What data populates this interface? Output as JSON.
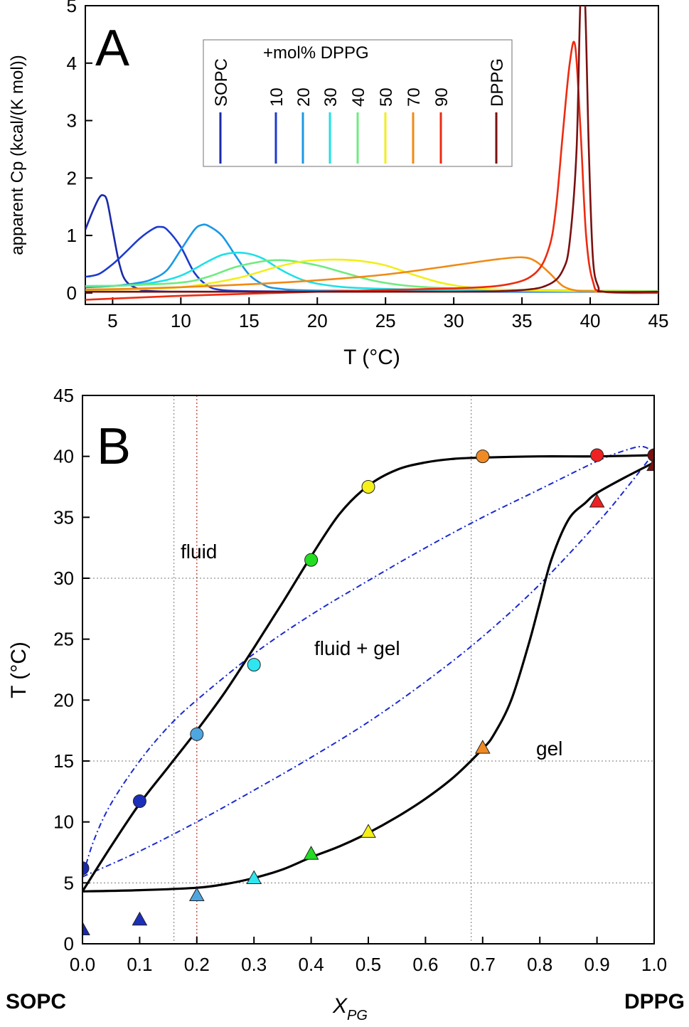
{
  "panel_a": {
    "letter": "A",
    "legend_header": "+mol% DPPG",
    "chart_data": {
      "type": "line",
      "xlabel": "T (°C)",
      "ylabel": "apparent Cp (kcal/(K mol))",
      "xlim": [
        3,
        45
      ],
      "ylim": [
        -0.2,
        5
      ],
      "xticks": [
        5,
        10,
        15,
        20,
        25,
        30,
        35,
        40,
        45
      ],
      "yticks": [
        0,
        1,
        2,
        3,
        4,
        5
      ],
      "grid": false,
      "legend_position": "top",
      "series": [
        {
          "name": "SOPC",
          "color": "#1a2aa8",
          "x": [
            3,
            3.5,
            4,
            4.3,
            4.6,
            5,
            5.5,
            6,
            7,
            8,
            10,
            15,
            20,
            30,
            45
          ],
          "y": [
            1.1,
            1.4,
            1.65,
            1.7,
            1.6,
            1.1,
            0.5,
            0.2,
            0.06,
            0.03,
            0.02,
            0.02,
            0.02,
            0.02,
            0.02
          ]
        },
        {
          "name": "10",
          "color": "#1c3bcf",
          "x": [
            3,
            4,
            5,
            6,
            7,
            8,
            8.5,
            9,
            10,
            11,
            12,
            13,
            15,
            20,
            30,
            45
          ],
          "y": [
            0.28,
            0.33,
            0.5,
            0.72,
            0.95,
            1.12,
            1.15,
            1.1,
            0.8,
            0.35,
            0.12,
            0.05,
            0.03,
            0.02,
            0.02,
            0.02
          ]
        },
        {
          "name": "20",
          "color": "#1a98e6",
          "x": [
            3,
            5,
            7,
            8,
            9,
            10,
            11,
            11.5,
            12,
            13,
            14,
            15,
            16,
            17,
            20,
            30,
            45
          ],
          "y": [
            0.1,
            0.12,
            0.18,
            0.25,
            0.4,
            0.75,
            1.1,
            1.18,
            1.17,
            1.0,
            0.65,
            0.32,
            0.15,
            0.08,
            0.04,
            0.03,
            0.02
          ]
        },
        {
          "name": "30",
          "color": "#1ee0e6",
          "x": [
            3,
            6,
            8,
            10,
            12,
            13,
            14,
            15,
            16,
            17,
            18,
            19,
            20,
            22,
            25,
            30,
            45
          ],
          "y": [
            0.12,
            0.13,
            0.18,
            0.3,
            0.55,
            0.66,
            0.7,
            0.68,
            0.6,
            0.45,
            0.32,
            0.22,
            0.16,
            0.1,
            0.07,
            0.05,
            0.03
          ]
        },
        {
          "name": "40",
          "color": "#6eec7e",
          "x": [
            3,
            6,
            10,
            12,
            14,
            16,
            17,
            18,
            20,
            22,
            24,
            26,
            28,
            30,
            35,
            45
          ],
          "y": [
            0.12,
            0.13,
            0.18,
            0.28,
            0.45,
            0.55,
            0.57,
            0.56,
            0.48,
            0.35,
            0.22,
            0.14,
            0.1,
            0.08,
            0.05,
            0.03
          ]
        },
        {
          "name": "50",
          "color": "#f2ee1a",
          "x": [
            3,
            6,
            10,
            14,
            17,
            19,
            21,
            23,
            25,
            27,
            29,
            31,
            33,
            36,
            40,
            45
          ],
          "y": [
            0.05,
            0.06,
            0.1,
            0.25,
            0.45,
            0.55,
            0.58,
            0.56,
            0.48,
            0.32,
            0.18,
            0.1,
            0.06,
            0.04,
            0.03,
            0.02
          ]
        },
        {
          "name": "70",
          "color": "#f08a14",
          "x": [
            3,
            6,
            10,
            15,
            20,
            25,
            30,
            33,
            35,
            36,
            37,
            38,
            39,
            40,
            41,
            45
          ],
          "y": [
            0.06,
            0.07,
            0.1,
            0.15,
            0.22,
            0.32,
            0.48,
            0.58,
            0.62,
            0.55,
            0.35,
            0.12,
            0.04,
            0.03,
            0.02,
            0.02
          ]
        },
        {
          "name": "90",
          "color": "#ee2a10",
          "x": [
            3,
            10,
            20,
            30,
            34,
            36,
            37,
            37.5,
            38,
            38.5,
            38.9,
            39.3,
            39.7,
            40.2,
            41,
            45
          ],
          "y": [
            -0.12,
            -0.05,
            0.02,
            0.08,
            0.15,
            0.35,
            0.8,
            1.5,
            2.8,
            4.0,
            4.3,
            2.8,
            1.0,
            0.2,
            0.02,
            0.0
          ]
        },
        {
          "name": "DPPG",
          "color": "#7a1010",
          "x": [
            3,
            20,
            30,
            35,
            37,
            38,
            38.5,
            39,
            39.3,
            39.6,
            39.9,
            40.2,
            40.6,
            41,
            45
          ],
          "y": [
            0.02,
            0.02,
            0.02,
            0.05,
            0.15,
            0.4,
            0.9,
            2.5,
            5.2,
            5.2,
            2.5,
            0.6,
            0.1,
            0.02,
            0.02
          ]
        }
      ]
    }
  },
  "panel_b": {
    "letter": "B",
    "region_labels": {
      "fluid": "fluid",
      "coexist": "fluid + gel",
      "gel": "gel"
    },
    "end_labels": {
      "left": "SOPC",
      "right": "DPPG"
    },
    "chart_data": {
      "type": "scatter",
      "xlabel": "X",
      "xlabel_sub": "PG",
      "ylabel": "T (°C)",
      "xlim": [
        0,
        1.0
      ],
      "ylim": [
        0,
        45
      ],
      "xticks": [
        "0.0",
        "0.1",
        "0.2",
        "0.3",
        "0.4",
        "0.5",
        "0.6",
        "0.7",
        "0.8",
        "0.9",
        "1.0"
      ],
      "yticks": [
        0,
        5,
        10,
        15,
        20,
        25,
        30,
        35,
        40,
        45
      ],
      "grid": "dotted guide lines at y = 5, 15, 30 and x = 0.16, 0.2, 0.68",
      "guide_y": [
        5,
        15,
        30
      ],
      "guide_x": [
        0.16,
        0.68
      ],
      "guide_x_red": [
        0.2
      ],
      "liquidus_points": [
        {
          "x": 0.0,
          "y": 6.2,
          "color": "#1a2aa8"
        },
        {
          "x": 0.1,
          "y": 11.7,
          "color": "#1c2fb8"
        },
        {
          "x": 0.2,
          "y": 17.2,
          "color": "#4ea6e0"
        },
        {
          "x": 0.3,
          "y": 22.9,
          "color": "#2fe6f0"
        },
        {
          "x": 0.4,
          "y": 31.5,
          "color": "#22dd22"
        },
        {
          "x": 0.5,
          "y": 37.5,
          "color": "#f5f01a"
        },
        {
          "x": 0.7,
          "y": 40.0,
          "color": "#f08a24"
        },
        {
          "x": 0.9,
          "y": 40.1,
          "color": "#ee2222"
        },
        {
          "x": 1.0,
          "y": 40.1,
          "color": "#7a1010"
        }
      ],
      "solidus_points": [
        {
          "x": 0.0,
          "y": 1.2,
          "color": "#1a2aa8"
        },
        {
          "x": 0.1,
          "y": 2.0,
          "color": "#1c2fb8"
        },
        {
          "x": 0.2,
          "y": 4.0,
          "color": "#4ea6e0"
        },
        {
          "x": 0.3,
          "y": 5.4,
          "color": "#2fe6f0"
        },
        {
          "x": 0.4,
          "y": 7.4,
          "color": "#22dd22"
        },
        {
          "x": 0.5,
          "y": 9.2,
          "color": "#f5f01a"
        },
        {
          "x": 0.7,
          "y": 16.1,
          "color": "#f08a24"
        },
        {
          "x": 0.9,
          "y": 36.3,
          "color": "#ee2222"
        },
        {
          "x": 1.0,
          "y": 39.3,
          "color": "#7a1010"
        }
      ],
      "liquidus_curve": {
        "x": [
          0,
          0.05,
          0.1,
          0.15,
          0.2,
          0.25,
          0.3,
          0.35,
          0.4,
          0.45,
          0.5,
          0.55,
          0.6,
          0.65,
          0.7,
          0.8,
          0.9,
          1.0
        ],
        "y": [
          4.3,
          8.0,
          11.5,
          14.5,
          17.5,
          20.7,
          24.3,
          28.0,
          31.8,
          35.3,
          37.6,
          38.9,
          39.5,
          39.8,
          39.9,
          40.0,
          40.0,
          40.1
        ]
      },
      "solidus_curve": {
        "x": [
          0,
          0.1,
          0.2,
          0.25,
          0.3,
          0.35,
          0.4,
          0.45,
          0.5,
          0.55,
          0.6,
          0.65,
          0.7,
          0.72,
          0.75,
          0.78,
          0.8,
          0.82,
          0.85,
          0.88,
          0.9,
          0.95,
          1.0
        ],
        "y": [
          4.3,
          4.4,
          4.6,
          4.9,
          5.4,
          6.1,
          7.1,
          8.0,
          9.1,
          10.4,
          11.9,
          13.7,
          16.0,
          17.2,
          20.0,
          24.5,
          28.0,
          31.5,
          34.8,
          36.2,
          37.0,
          38.3,
          39.5
        ]
      },
      "model_upper": {
        "x": [
          0,
          0.02,
          0.05,
          0.1,
          0.15,
          0.2,
          0.3,
          0.4,
          0.5,
          0.6,
          0.7,
          0.8,
          0.9,
          0.95,
          0.98,
          1.0
        ],
        "y": [
          5.5,
          8.5,
          11.5,
          15.0,
          17.8,
          20.0,
          23.8,
          27.0,
          29.8,
          32.5,
          35.0,
          37.3,
          39.6,
          40.5,
          40.8,
          40.3
        ]
      },
      "model_lower": {
        "x": [
          0,
          0.1,
          0.2,
          0.3,
          0.4,
          0.5,
          0.6,
          0.7,
          0.8,
          0.9,
          0.95,
          1.0
        ],
        "y": [
          5.5,
          7.6,
          10.0,
          12.6,
          15.3,
          18.2,
          21.5,
          25.2,
          29.5,
          34.5,
          37.3,
          40.3
        ]
      }
    }
  }
}
